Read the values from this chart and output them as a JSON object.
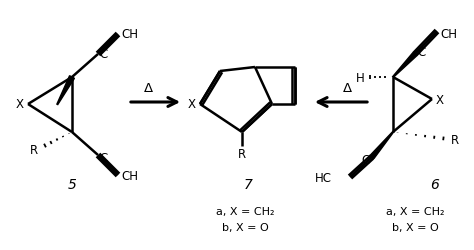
{
  "bg_color": "#ffffff",
  "text_color": "#000000",
  "label5": "5",
  "label7": "7",
  "label6": "6",
  "sub7a": "a, X = CH₂",
  "sub7b": "b, X = O",
  "sub6a": "a, X = CH₂",
  "sub6b": "b, X = O",
  "delta_symbol": "Δ",
  "lw": 1.8,
  "lw_thick": 2.2,
  "fs_main": 8.5,
  "fs_label": 10
}
